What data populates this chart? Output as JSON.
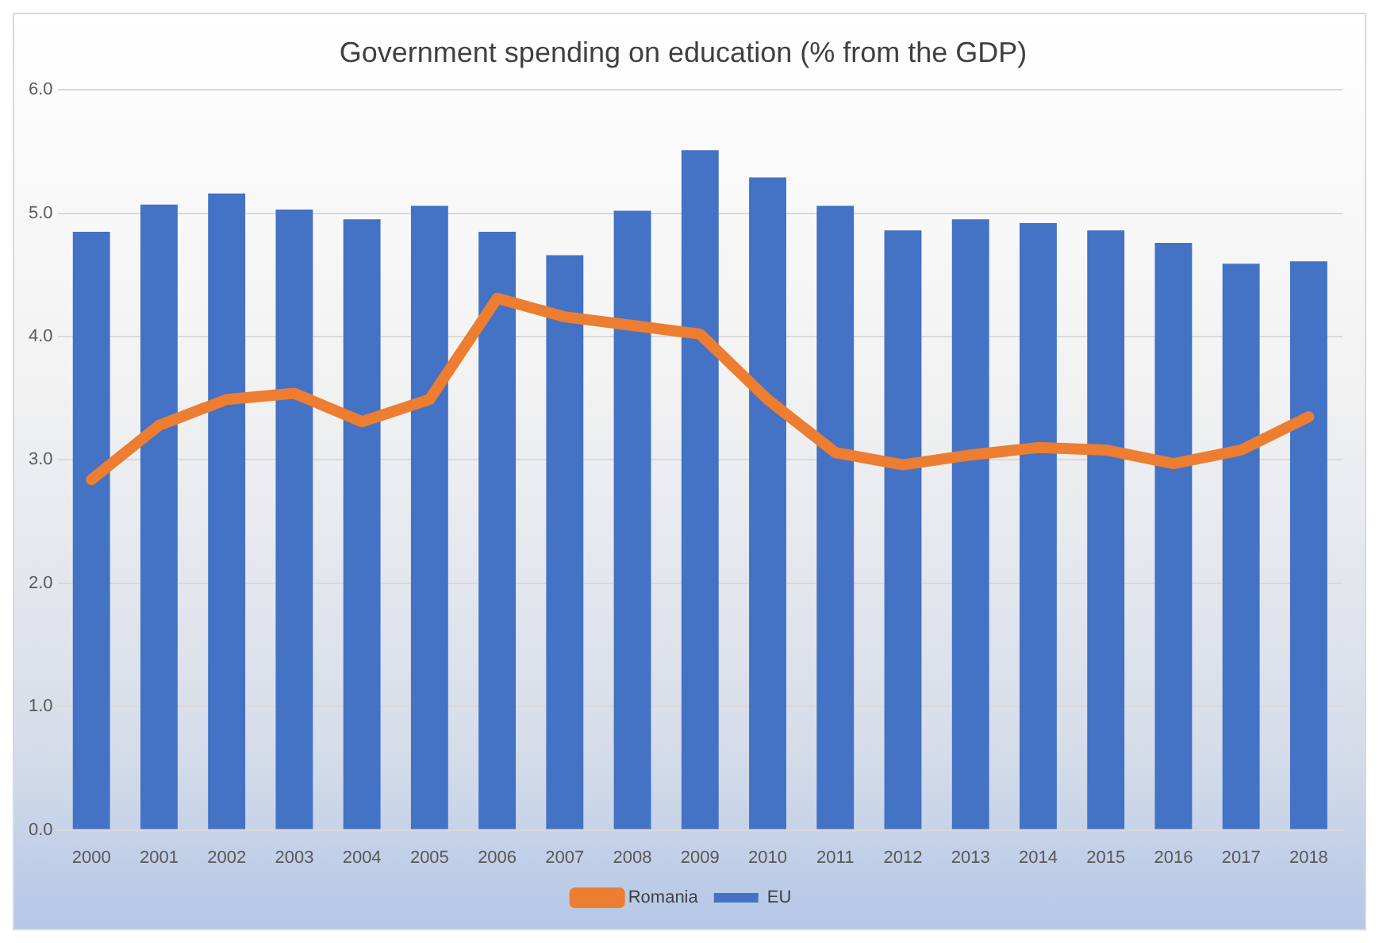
{
  "chart_data": {
    "type": "bar",
    "title": "Government spending on education (% from the GDP)",
    "categories": [
      "2000",
      "2001",
      "2002",
      "2003",
      "2004",
      "2005",
      "2006",
      "2007",
      "2008",
      "2009",
      "2010",
      "2011",
      "2012",
      "2013",
      "2014",
      "2015",
      "2016",
      "2017",
      "2018"
    ],
    "series": [
      {
        "name": "EU",
        "color": "#4472c4",
        "values": [
          4.85,
          5.07,
          5.16,
          5.03,
          4.95,
          5.06,
          4.85,
          4.66,
          5.02,
          5.51,
          5.29,
          5.06,
          4.86,
          4.95,
          4.92,
          4.86,
          4.76,
          4.59,
          4.61
        ]
      },
      {
        "name": "Romania",
        "type": "line",
        "color": "#ed7d31",
        "values": [
          2.84,
          3.28,
          3.49,
          3.54,
          3.31,
          3.49,
          4.31,
          4.16,
          4.09,
          4.02,
          3.49,
          3.06,
          2.96,
          3.04,
          3.1,
          3.08,
          2.97,
          3.08,
          3.35
        ]
      }
    ],
    "ylim": [
      0,
      6
    ],
    "yticks": [
      {
        "value": 0,
        "label": "0.0"
      },
      {
        "value": 1,
        "label": "1.0"
      },
      {
        "value": 2,
        "label": "2.0"
      },
      {
        "value": 3,
        "label": "3.0"
      },
      {
        "value": 4,
        "label": "4.0"
      },
      {
        "value": 5,
        "label": "5.0"
      },
      {
        "value": 6,
        "label": "6.0"
      }
    ],
    "grid": "y",
    "legend": "bottom",
    "marker": "none"
  }
}
